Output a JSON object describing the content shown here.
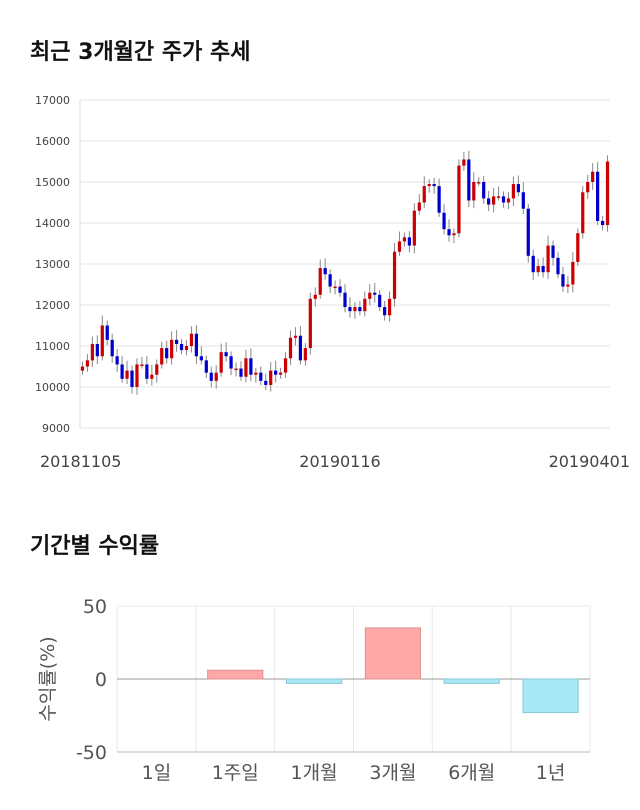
{
  "section1": {
    "title": "최근 3개월간 주가 추세"
  },
  "section2": {
    "title": "기간별 수익률"
  },
  "chart_data": [
    {
      "type": "candlestick",
      "title": "최근 3개월간 주가 추세",
      "ylim": [
        9000,
        17000
      ],
      "yticks": [
        "17000",
        "16000",
        "15000",
        "14000",
        "13000",
        "12000",
        "11000",
        "10000",
        "9000"
      ],
      "xticks": [
        "20181105",
        "20190116",
        "20190401"
      ],
      "up_color": "#cc0000",
      "down_color": "#0000cc",
      "close_series": [
        10500,
        10650,
        11050,
        10750,
        11500,
        11150,
        10750,
        10550,
        10200,
        10400,
        10000,
        10550,
        10550,
        10200,
        10300,
        10550,
        10950,
        10700,
        11150,
        11050,
        10900,
        11000,
        11300,
        10750,
        10650,
        10350,
        10150,
        10350,
        10850,
        10750,
        10450,
        10450,
        10250,
        10700,
        10300,
        10350,
        10150,
        10050,
        10400,
        10300,
        10350,
        10700,
        11200,
        11250,
        10650,
        10950,
        12150,
        12250,
        12900,
        12750,
        12450,
        12450,
        12300,
        11950,
        11850,
        11950,
        11850,
        12150,
        12300,
        12250,
        11950,
        11750,
        12150,
        13300,
        13550,
        13650,
        13450,
        14300,
        14500,
        14900,
        14950,
        14900,
        14250,
        13850,
        13700,
        13750,
        15400,
        15550,
        14550,
        15000,
        15000,
        14600,
        14450,
        14650,
        14650,
        14500,
        14600,
        14950,
        14750,
        14350,
        13200,
        12800,
        12950,
        12800,
        13450,
        13150,
        12750,
        12450,
        12500,
        13050,
        13750,
        14750,
        15000,
        15250,
        14050,
        13950,
        15500
      ]
    },
    {
      "type": "bar",
      "title": "기간별 수익률",
      "ylabel": "수익률(%)",
      "ylim": [
        -50,
        50
      ],
      "yticks": [
        "50",
        "0",
        "-50"
      ],
      "categories": [
        "1일",
        "1주일",
        "1개월",
        "3개월",
        "6개월",
        "1년"
      ],
      "values": [
        0,
        6,
        -3,
        35,
        -3,
        -23
      ],
      "positive_color": "#ffa8a8",
      "negative_color": "#a8e8f4"
    }
  ]
}
